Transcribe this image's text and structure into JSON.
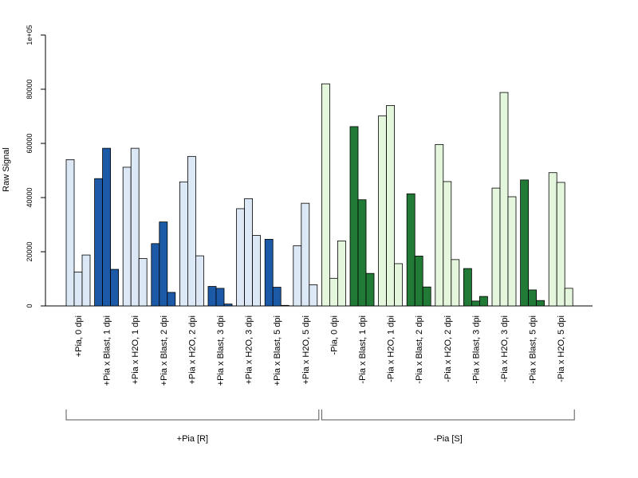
{
  "chart_data": {
    "type": "bar",
    "ylabel": "Raw Signal",
    "ylim": [
      0,
      100000
    ],
    "yticks": [
      {
        "value": 0,
        "label": "0"
      },
      {
        "value": 20000,
        "label": "20000"
      },
      {
        "value": 40000,
        "label": "40000"
      },
      {
        "value": 60000,
        "label": "60000"
      },
      {
        "value": 80000,
        "label": "80000"
      },
      {
        "value": 100000,
        "label": "1e+05"
      }
    ],
    "categories": [
      "+Pia, 0 dpi",
      "+Pia x Blast, 1 dpi",
      "+Pia x H2O, 1 dpi",
      "+Pia x Blast, 2 dpi",
      "+Pia x H2O, 2 dpi",
      "+Pia x Blast, 3 dpi",
      "+Pia x H2O, 3 dpi",
      "+Pia x Blast, 5 dpi",
      "+Pia x H2O, 5 dpi",
      "-Pia, 0 dpi",
      "-Pia x Blast, 1 dpi",
      "-Pia x H2O, 1 dpi",
      "-Pia x Blast, 2 dpi",
      "-Pia x H2O, 2 dpi",
      "-Pia x Blast, 3 dpi",
      "-Pia x H2O, 3 dpi",
      "-Pia x Blast, 5 dpi",
      "-Pia x H2O, 5 dpi"
    ],
    "bar_colors": [
      "#dce8f5",
      "#1c5aa8",
      "#dce8f5",
      "#1c5aa8",
      "#dce8f5",
      "#1c5aa8",
      "#dce8f5",
      "#1c5aa8",
      "#dce8f5",
      "#e4f6dc",
      "#217a35",
      "#e4f6dc",
      "#217a35",
      "#e4f6dc",
      "#217a35",
      "#e4f6dc",
      "#217a35",
      "#e4f6dc"
    ],
    "values": [
      [
        54000,
        12500,
        18800
      ],
      [
        47000,
        58200,
        13500
      ],
      [
        51200,
        58200,
        17500
      ],
      [
        23000,
        31000,
        5000
      ],
      [
        45800,
        55200,
        18500
      ],
      [
        7200,
        6500,
        700
      ],
      [
        35900,
        39600,
        26000
      ],
      [
        24600,
        6900,
        200
      ],
      [
        22200,
        37900,
        7800
      ],
      [
        82000,
        10200,
        24000
      ],
      [
        66200,
        39200,
        12000
      ],
      [
        70200,
        74000,
        15600
      ],
      [
        41400,
        18400,
        7000
      ],
      [
        59600,
        45900,
        17100
      ],
      [
        13800,
        1800,
        3500
      ],
      [
        43500,
        78800,
        40300
      ],
      [
        46500,
        5900,
        2000
      ],
      [
        49200,
        45600,
        6500
      ]
    ],
    "groups": [
      {
        "label": "+Pia [R]",
        "from": 0,
        "to": 8
      },
      {
        "label": "-Pia [S]",
        "from": 9,
        "to": 17
      }
    ]
  }
}
